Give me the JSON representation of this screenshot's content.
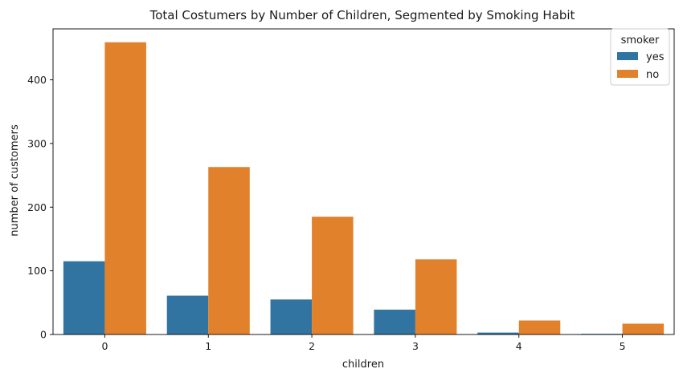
{
  "chart_data": {
    "type": "bar",
    "title": "Total Costumers by Number of Children, Segmented by Smoking Habit",
    "xlabel": "children",
    "ylabel": "number of customers",
    "categories": [
      "0",
      "1",
      "2",
      "3",
      "4",
      "5"
    ],
    "series": [
      {
        "name": "yes",
        "color": "#3274a1",
        "values": [
          115,
          61,
          55,
          39,
          3,
          1
        ]
      },
      {
        "name": "no",
        "color": "#e1812c",
        "values": [
          459,
          263,
          185,
          118,
          22,
          17
        ]
      }
    ],
    "yticks": [
      0,
      100,
      200,
      300,
      400
    ],
    "ylim": [
      0,
      480
    ],
    "legend": {
      "title": "smoker",
      "placement": "top-right"
    },
    "grid": false
  }
}
